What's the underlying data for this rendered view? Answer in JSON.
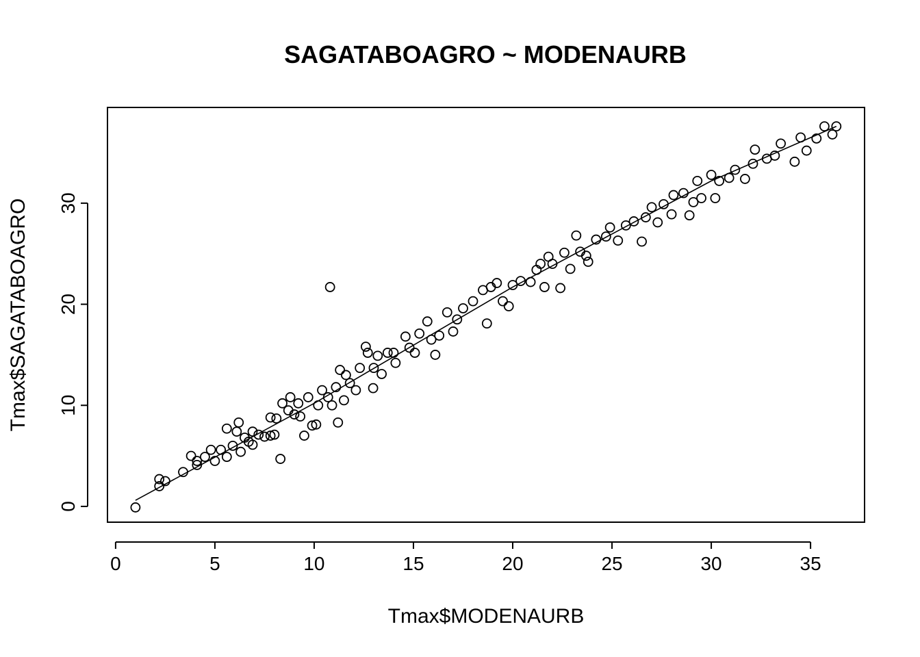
{
  "chart_data": {
    "type": "scatter",
    "title": "SAGATABOAGRO ~ MODENAURB",
    "x_label": "Tmax$MODENAURB",
    "y_label": "Tmax$SAGATABOAGRO",
    "xlim": [
      -0.41,
      37.72
    ],
    "ylim": [
      -1.56,
      39.47
    ],
    "xticks": [
      0,
      5,
      10,
      15,
      20,
      25,
      30,
      35
    ],
    "yticks": [
      0,
      10,
      20,
      30
    ],
    "color": "#000000",
    "points": {
      "x": [
        1.0,
        2.2,
        2.2,
        2.5,
        3.4,
        3.8,
        4.1,
        4.1,
        4.5,
        4.8,
        5.0,
        5.3,
        5.6,
        5.6,
        5.9,
        6.1,
        6.2,
        6.3,
        6.5,
        6.7,
        6.9,
        6.9,
        7.2,
        7.5,
        7.8,
        7.8,
        8.0,
        8.1,
        8.3,
        8.4,
        8.7,
        8.8,
        9.0,
        9.2,
        9.3,
        9.5,
        9.7,
        9.9,
        10.1,
        10.2,
        10.4,
        10.7,
        10.8,
        10.9,
        11.1,
        11.2,
        11.3,
        11.5,
        11.6,
        11.8,
        12.1,
        12.3,
        12.6,
        12.7,
        12.97,
        13.0,
        13.2,
        13.4,
        13.7,
        14.0,
        14.1,
        14.6,
        14.8,
        15.07,
        15.3,
        15.7,
        15.9,
        16.1,
        16.3,
        16.7,
        17.0,
        17.2,
        17.5,
        18.0,
        18.5,
        18.7,
        18.9,
        19.2,
        19.5,
        19.8,
        20.0,
        20.4,
        20.9,
        21.2,
        21.4,
        21.6,
        21.8,
        22.0,
        22.4,
        22.6,
        22.9,
        23.2,
        23.4,
        23.7,
        23.8,
        24.2,
        24.7,
        24.9,
        25.3,
        25.7,
        26.1,
        26.5,
        26.7,
        27.0,
        27.3,
        27.6,
        28.0,
        28.1,
        28.6,
        28.9,
        29.1,
        29.3,
        29.5,
        30.0,
        30.2,
        30.4,
        30.9,
        31.2,
        31.7,
        32.1,
        32.2,
        32.8,
        33.2,
        33.5,
        34.2,
        34.5,
        34.8,
        35.3,
        35.7,
        36.1,
        36.3
      ],
      "y": [
        -0.1,
        2.7,
        2.0,
        2.5,
        3.4,
        5.0,
        4.1,
        4.5,
        4.9,
        5.6,
        4.5,
        5.6,
        7.7,
        4.9,
        6.0,
        7.4,
        8.3,
        5.4,
        6.8,
        6.4,
        6.1,
        7.4,
        7.1,
        6.9,
        7.0,
        8.8,
        7.1,
        8.7,
        4.7,
        10.2,
        9.5,
        10.8,
        9.1,
        10.2,
        8.9,
        7.0,
        10.8,
        8.0,
        8.1,
        10.0,
        11.5,
        10.8,
        21.7,
        10.0,
        11.8,
        8.3,
        13.5,
        10.5,
        13.0,
        12.2,
        11.5,
        13.7,
        15.8,
        15.2,
        11.7,
        13.7,
        14.9,
        13.1,
        15.2,
        15.2,
        14.2,
        16.8,
        15.7,
        15.2,
        17.1,
        18.3,
        16.5,
        15.0,
        16.9,
        19.2,
        17.3,
        18.5,
        19.6,
        20.3,
        21.4,
        18.1,
        21.7,
        22.1,
        20.3,
        19.8,
        21.9,
        22.3,
        22.2,
        23.4,
        24.0,
        21.7,
        24.7,
        24.0,
        21.6,
        25.1,
        23.5,
        26.8,
        25.2,
        24.8,
        24.2,
        26.4,
        26.7,
        27.6,
        26.3,
        27.8,
        28.2,
        26.2,
        28.6,
        29.6,
        28.1,
        29.9,
        28.9,
        30.8,
        31.0,
        28.8,
        30.1,
        32.2,
        30.5,
        32.8,
        30.5,
        32.2,
        32.5,
        33.3,
        32.4,
        33.9,
        35.3,
        34.4,
        34.7,
        35.9,
        34.1,
        36.5,
        35.2,
        36.4,
        37.6,
        36.8,
        37.6
      ]
    },
    "fit_line": {
      "x": [
        1.0,
        10,
        20,
        30,
        36.3
      ],
      "y": [
        0.6,
        10.2,
        21.7,
        32.2,
        37.6
      ]
    }
  }
}
